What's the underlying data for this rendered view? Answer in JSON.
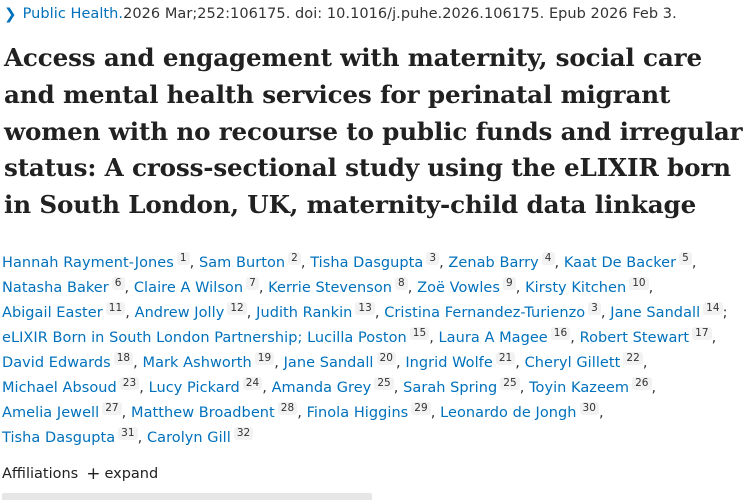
{
  "citation": {
    "journal": "Public Health.",
    "details": " 2026 Mar;252:106175. doi: 10.1016/j.puhe.2026.106175. Epub 2026 Feb 3."
  },
  "title": "Access and engagement with maternity, social care and mental health services for perinatal migrant women with no recourse to public funds and irregular status: A cross-sectional study using the eLIXIR born in South London, UK, maternity-child data linkage",
  "authors": [
    {
      "name": "Hannah Rayment-Jones",
      "aff": "1",
      "sep": ","
    },
    {
      "name": "Sam Burton",
      "aff": "2",
      "sep": ","
    },
    {
      "name": "Tisha Dasgupta",
      "aff": "3",
      "sep": ","
    },
    {
      "name": "Zenab Barry",
      "aff": "4",
      "sep": ","
    },
    {
      "name": "Kaat De Backer",
      "aff": "5",
      "sep": ","
    },
    {
      "name": "Natasha Baker",
      "aff": "6",
      "sep": ","
    },
    {
      "name": "Claire A Wilson",
      "aff": "7",
      "sep": ","
    },
    {
      "name": "Kerrie Stevenson",
      "aff": "8",
      "sep": ","
    },
    {
      "name": "Zoë Vowles",
      "aff": "9",
      "sep": ","
    },
    {
      "name": "Kirsty Kitchen",
      "aff": "10",
      "sep": ","
    },
    {
      "name": "Abigail Easter",
      "aff": "11",
      "sep": ","
    },
    {
      "name": "Andrew Jolly",
      "aff": "12",
      "sep": ","
    },
    {
      "name": "Judith Rankin",
      "aff": "13",
      "sep": ","
    },
    {
      "name": "Cristina Fernandez-Turienzo",
      "aff": "3",
      "sep": ","
    },
    {
      "name": "Jane Sandall",
      "aff": "14",
      "sep": ";"
    },
    {
      "name": "eLIXIR Born in South London Partnership;",
      "aff": "",
      "sep": ""
    },
    {
      "name": "Lucilla Poston",
      "aff": "15",
      "sep": ","
    },
    {
      "name": "Laura A Magee",
      "aff": "16",
      "sep": ","
    },
    {
      "name": "Robert Stewart",
      "aff": "17",
      "sep": ","
    },
    {
      "name": "David Edwards",
      "aff": "18",
      "sep": ","
    },
    {
      "name": "Mark Ashworth",
      "aff": "19",
      "sep": ","
    },
    {
      "name": "Jane Sandall",
      "aff": "20",
      "sep": ","
    },
    {
      "name": "Ingrid Wolfe",
      "aff": "21",
      "sep": ","
    },
    {
      "name": "Cheryl Gillett",
      "aff": "22",
      "sep": ","
    },
    {
      "name": "Michael Absoud",
      "aff": "23",
      "sep": ","
    },
    {
      "name": "Lucy Pickard",
      "aff": "24",
      "sep": ","
    },
    {
      "name": "Amanda Grey",
      "aff": "25",
      "sep": ","
    },
    {
      "name": "Sarah Spring",
      "aff": "25",
      "sep": ","
    },
    {
      "name": "Toyin Kazeem",
      "aff": "26",
      "sep": ","
    },
    {
      "name": "Amelia Jewell",
      "aff": "27",
      "sep": ","
    },
    {
      "name": "Matthew Broadbent",
      "aff": "28",
      "sep": ","
    },
    {
      "name": "Finola Higgins",
      "aff": "29",
      "sep": ","
    },
    {
      "name": "Leonardo de Jongh",
      "aff": "30",
      "sep": ","
    },
    {
      "name": "Tisha Dasgupta",
      "aff": "31",
      "sep": ","
    },
    {
      "name": "Carolyn Gill",
      "aff": "32",
      "sep": ""
    }
  ],
  "affiliations": {
    "label": "Affiliations",
    "toggle": "expand"
  }
}
